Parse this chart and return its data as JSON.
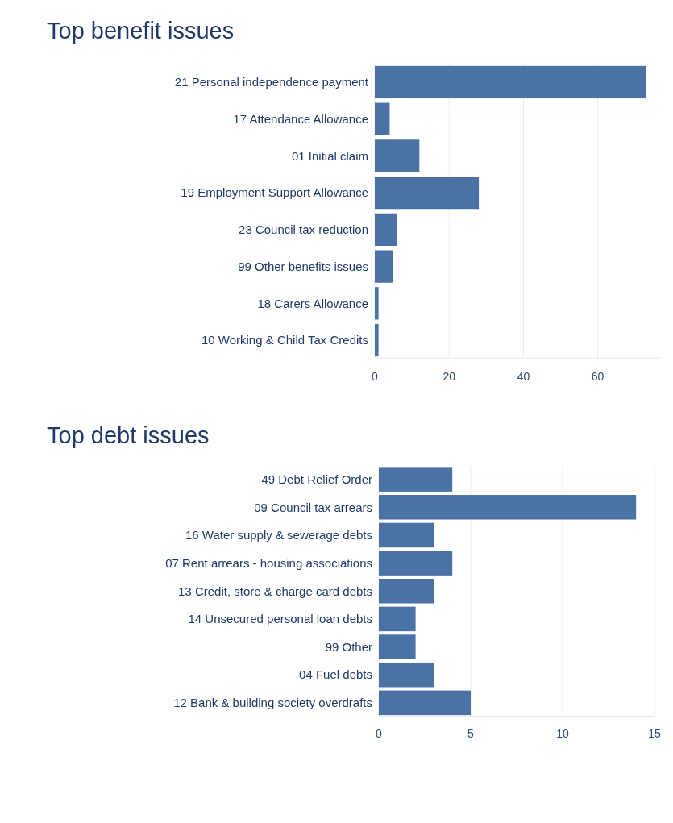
{
  "chart_data": [
    {
      "type": "bar",
      "orientation": "horizontal",
      "title": "Top benefit issues",
      "categories": [
        "21 Personal independence payment",
        "17 Attendance Allowance",
        "01 Initial claim",
        "19 Employment Support Allowance",
        "23 Council tax reduction",
        "99 Other benefits issues",
        "18 Carers Allowance",
        "10 Working & Child Tax Credits"
      ],
      "values": [
        73,
        4,
        12,
        28,
        6,
        5,
        1,
        1
      ],
      "color": "#4a72a5",
      "xlim": [
        0,
        77
      ],
      "xticks": [
        0,
        20,
        40,
        60
      ],
      "grid": "x"
    },
    {
      "type": "bar",
      "orientation": "horizontal",
      "title": "Top debt issues",
      "categories": [
        "49 Debt Relief Order",
        "09 Council tax arrears",
        "16 Water supply & sewerage debts",
        "07 Rent arrears -  housing associations",
        "13 Credit, store & charge card debts",
        "14 Unsecured personal loan debts",
        "99 Other",
        "04 Fuel debts",
        "12 Bank & building society overdrafts"
      ],
      "values": [
        4,
        14,
        3,
        4,
        3,
        2,
        2,
        3,
        5
      ],
      "color": "#4a72a5",
      "xlim": [
        0,
        15
      ],
      "xticks": [
        0,
        5,
        10,
        15
      ],
      "grid": "x"
    }
  ]
}
